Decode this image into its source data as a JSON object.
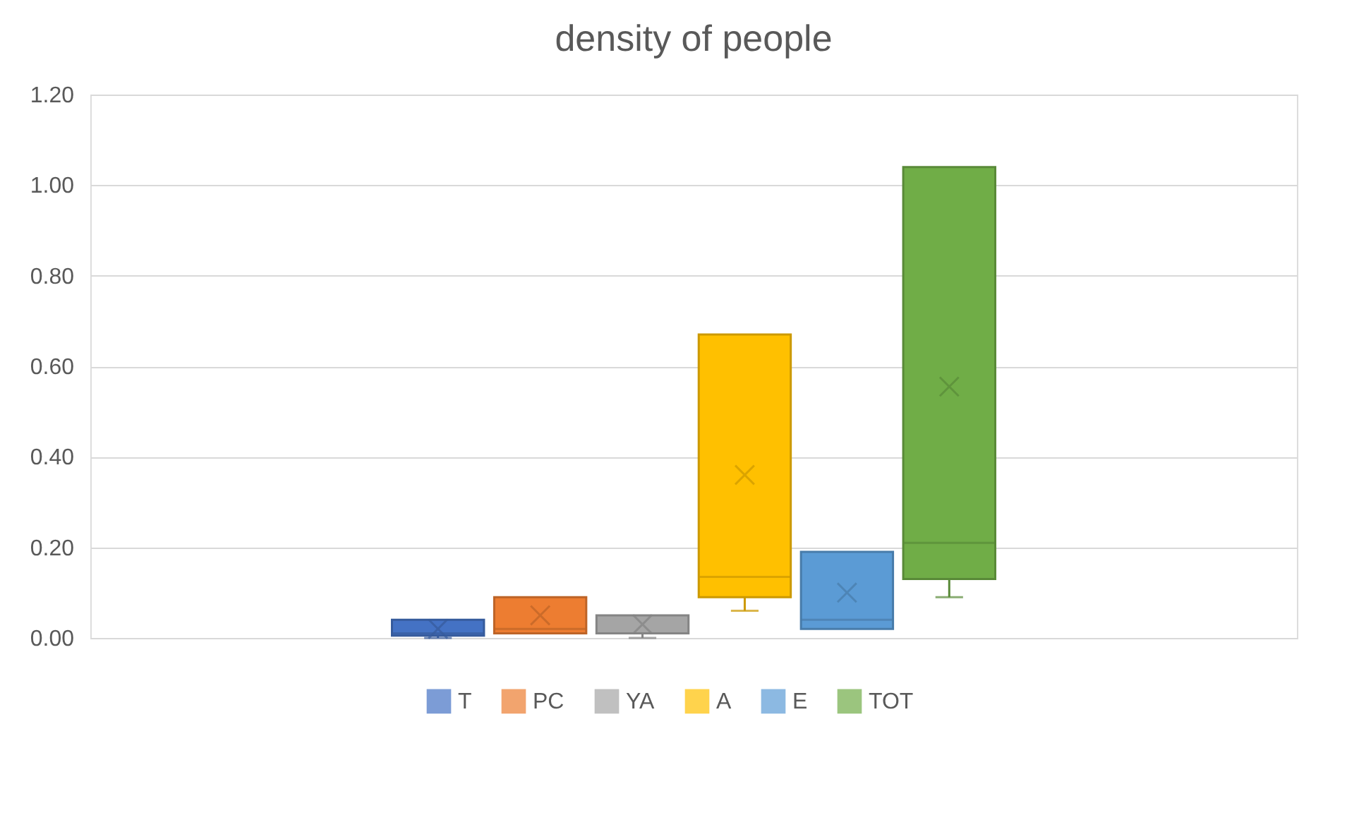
{
  "chart_data": {
    "type": "box",
    "title": "density of people",
    "categories": [
      null
    ],
    "series": [
      {
        "name": "T",
        "color": "#4472c4",
        "boxes": [
          {
            "low": 0,
            "q1": 0.005,
            "median": 0.01,
            "q3": 0.04,
            "high": 0.04,
            "mean": 0.02
          }
        ]
      },
      {
        "name": "PC",
        "color": "#ed7d31",
        "boxes": [
          {
            "low": 0.01,
            "q1": 0.01,
            "median": 0.02,
            "q3": 0.09,
            "high": 0.09,
            "mean": 0.05
          }
        ]
      },
      {
        "name": "YA",
        "color": "#a5a5a5",
        "boxes": [
          {
            "low": 0,
            "q1": 0.01,
            "median": 0.01,
            "q3": 0.05,
            "high": 0.05,
            "mean": 0.03
          }
        ]
      },
      {
        "name": "A",
        "color": "#ffc000",
        "boxes": [
          {
            "low": 0.06,
            "q1": 0.09,
            "median": 0.135,
            "q3": 0.67,
            "high": 0.67,
            "mean": 0.36
          }
        ]
      },
      {
        "name": "E",
        "color": "#5b9bd5",
        "boxes": [
          {
            "low": 0.02,
            "q1": 0.02,
            "median": 0.04,
            "q3": 0.19,
            "high": 0.19,
            "mean": 0.1
          }
        ]
      },
      {
        "name": "TOT",
        "color": "#70ad47",
        "boxes": [
          {
            "low": 0.09,
            "q1": 0.13,
            "median": 0.21,
            "q3": 1.04,
            "high": 1.04,
            "mean": 0.555
          }
        ]
      }
    ],
    "ylim": [
      0,
      1.2
    ],
    "yticks": [
      {
        "value": 0,
        "label": "0.00"
      },
      {
        "value": 0.2,
        "label": "0.20"
      },
      {
        "value": 0.4,
        "label": "0.40"
      },
      {
        "value": 0.6,
        "label": "0.60"
      },
      {
        "value": 0.8,
        "label": "0.80"
      },
      {
        "value": 1.0,
        "label": "1.00"
      },
      {
        "value": 1.2,
        "label": "1.20"
      }
    ],
    "grid": "y",
    "legend": "bottom"
  }
}
